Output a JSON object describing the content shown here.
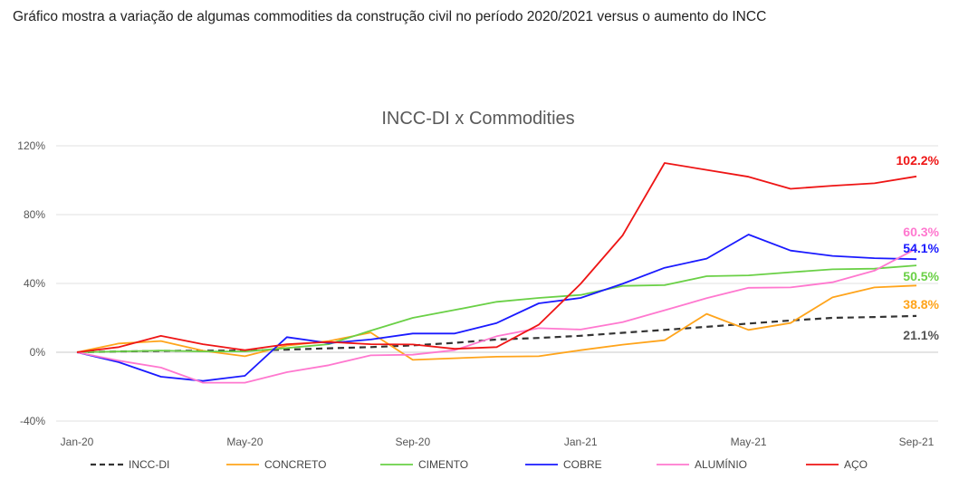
{
  "caption": "Gráfico mostra a variação de algumas commodities da construção civil no período 2020/2021 versus o aumento do INCC",
  "chart_data": {
    "type": "line",
    "title": "INCC-DI x Commodities",
    "xlabel": "",
    "ylabel": "",
    "ylim": [
      -40,
      120
    ],
    "y_ticks": [
      "-40%",
      "0%",
      "40%",
      "80%",
      "120%"
    ],
    "y_tick_values": [
      -40,
      0,
      40,
      80,
      120
    ],
    "x": [
      "Jan-20",
      "Feb-20",
      "Mar-20",
      "Apr-20",
      "May-20",
      "Jun-20",
      "Jul-20",
      "Aug-20",
      "Sep-20",
      "Oct-20",
      "Nov-20",
      "Dec-20",
      "Jan-21",
      "Feb-21",
      "Mar-21",
      "Apr-21",
      "May-21",
      "Jun-21",
      "Jul-21",
      "Aug-21",
      "Sep-21"
    ],
    "x_tick_labels": [
      "Jan-20",
      "May-20",
      "Sep-20",
      "Jan-21",
      "May-21",
      "Sep-21"
    ],
    "x_tick_indices": [
      0,
      4,
      8,
      12,
      16,
      20
    ],
    "grid": true,
    "legend_position": "bottom",
    "series": [
      {
        "name": "INCC-DI",
        "color": "#333333",
        "dashed": true,
        "end_label": "21.1%",
        "end_color": "#555555",
        "values": [
          0,
          0.5,
          0.8,
          0.9,
          1,
          1.5,
          2.3,
          3,
          4,
          5.5,
          7.4,
          8.3,
          9.6,
          11.3,
          13,
          14.8,
          16.7,
          18.5,
          20,
          20.5,
          21.1
        ]
      },
      {
        "name": "CONCRETO",
        "color": "#FFA41B",
        "end_label": "38.8%",
        "end_color": "#FFA41B",
        "values": [
          0,
          5.1,
          6.5,
          0.9,
          -2.3,
          3.9,
          6.5,
          11.4,
          -4.4,
          -3.5,
          -2.6,
          -2.3,
          1.2,
          4.4,
          7,
          22.3,
          13,
          17,
          31.9,
          37.7,
          38.8
        ]
      },
      {
        "name": "CIMENTO",
        "color": "#6AD046",
        "end_label": "50.5%",
        "end_color": "#6AD046",
        "values": [
          0,
          0.5,
          1,
          0.5,
          0.5,
          2.5,
          4.7,
          12.6,
          20,
          24.6,
          29.3,
          31.6,
          33.3,
          38.6,
          39,
          44.2,
          44.7,
          46.5,
          48.2,
          48.6,
          50.5
        ]
      },
      {
        "name": "COBRE",
        "color": "#1A1AFF",
        "end_label": "54.1%",
        "end_color": "#1A1AFF",
        "values": [
          0,
          -5.8,
          -14.2,
          -16.7,
          -13.7,
          8.8,
          5.3,
          7.4,
          10.9,
          10.9,
          17,
          28.4,
          31.6,
          39.8,
          49.1,
          54.4,
          68.4,
          59.1,
          56,
          54.7,
          54.1
        ]
      },
      {
        "name": "ALUMÍNIO",
        "color": "#FF78CF",
        "end_label": "60.3%",
        "end_color": "#FF78CF",
        "values": [
          0,
          -4.9,
          -8.9,
          -17.7,
          -17.7,
          -11.6,
          -7.5,
          -1.8,
          -1.4,
          1.2,
          9.3,
          14,
          13.2,
          17.5,
          24.4,
          31.4,
          37.5,
          37.7,
          40.7,
          47.4,
          60.3
        ]
      },
      {
        "name": "AÇO",
        "color": "#EE1515",
        "end_label": "102.2%",
        "end_color": "#EE1515",
        "values": [
          0,
          3,
          9.5,
          4.7,
          1.2,
          4.7,
          6,
          4.7,
          4.5,
          2,
          3,
          16,
          39.8,
          67.9,
          110,
          106,
          102,
          95,
          96.8,
          98.2,
          102.2
        ]
      }
    ]
  }
}
